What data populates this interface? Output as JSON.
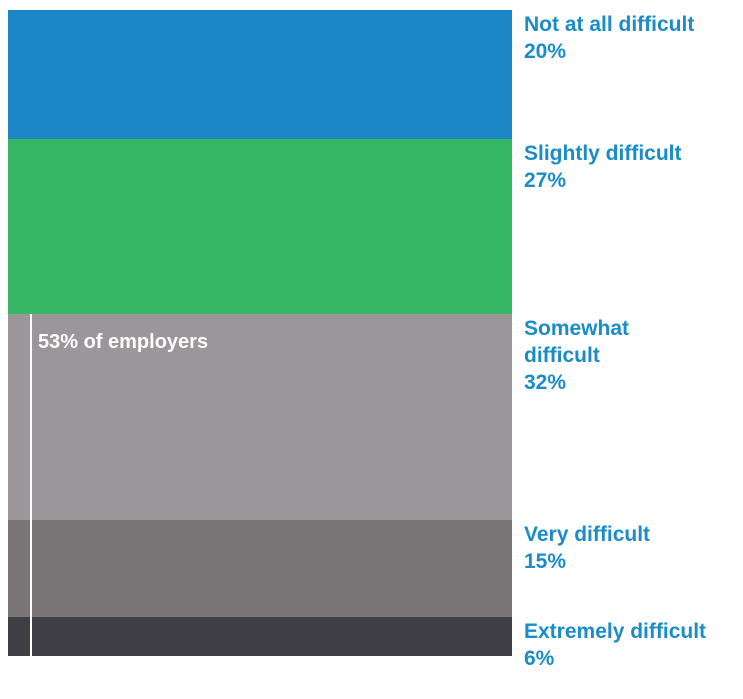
{
  "chart_data": {
    "type": "bar",
    "stacked": true,
    "orientation": "vertical-100-percent",
    "categories": [
      "Not at all difficult",
      "Slightly difficult",
      "Somewhat difficult",
      "Very difficult",
      "Extremely difficult"
    ],
    "values": [
      20,
      27,
      32,
      15,
      6
    ],
    "value_labels": [
      "20%",
      "27%",
      "32%",
      "15%",
      "6%"
    ],
    "label_lines": [
      [
        "Not at all difficult"
      ],
      [
        "Slightly difficult"
      ],
      [
        "Somewhat",
        "difficult"
      ],
      [
        "Very difficult"
      ],
      [
        "Extremely difficult"
      ]
    ],
    "colors": [
      "#1b87c7",
      "#36b766",
      "#9b9699",
      "#797577",
      "#3f3e44"
    ],
    "annotation": {
      "text": "53% of employers",
      "spans_categories": [
        2,
        3,
        4
      ]
    },
    "grid": false,
    "legend": "none"
  }
}
